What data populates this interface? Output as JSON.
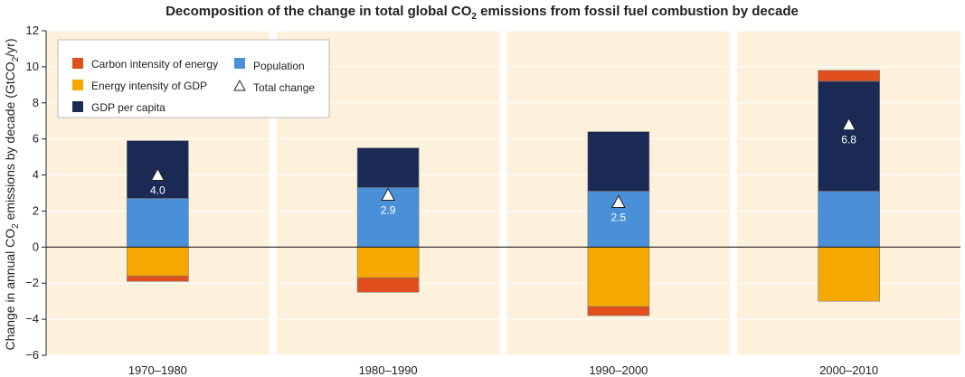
{
  "chart_data": {
    "type": "bar",
    "title": "Decomposition of the change in total global CO",
    "title_sub": "2",
    "title_tail": " emissions from fossil fuel combustion by decade",
    "ylabel_pre": "Change in annual CO",
    "ylabel_sub": "2",
    "ylabel_mid": " emissions by decade (GtCO",
    "ylabel_sub2": "2",
    "ylabel_post": "/yr)",
    "ylim": [
      -6,
      12
    ],
    "yticks": [
      -6,
      -4,
      -2,
      0,
      2,
      4,
      6,
      8,
      10,
      12
    ],
    "categories": [
      "1970–1980",
      "1980–1990",
      "1990–2000",
      "2000–2010"
    ],
    "series": [
      {
        "name": "Carbon intensity of energy",
        "color": "#E04E1C",
        "values": [
          -0.3,
          -0.8,
          -0.5,
          0.6
        ]
      },
      {
        "name": "Energy intensity of GDP",
        "color": "#F7A800",
        "values": [
          -1.6,
          -1.7,
          -3.3,
          -3.0
        ]
      },
      {
        "name": "GDP per capita",
        "color": "#1B2A55",
        "values": [
          3.2,
          2.2,
          3.3,
          6.1
        ]
      },
      {
        "name": "Population",
        "color": "#4A90D9",
        "values": [
          2.7,
          3.3,
          3.1,
          3.1
        ]
      }
    ],
    "total_change": {
      "name": "Total change",
      "values": [
        4.0,
        2.9,
        2.5,
        6.8
      ],
      "labels": [
        "4.0",
        "2.9",
        "2.5",
        "6.8"
      ]
    },
    "legend_placement": "top-left",
    "grid": true
  }
}
